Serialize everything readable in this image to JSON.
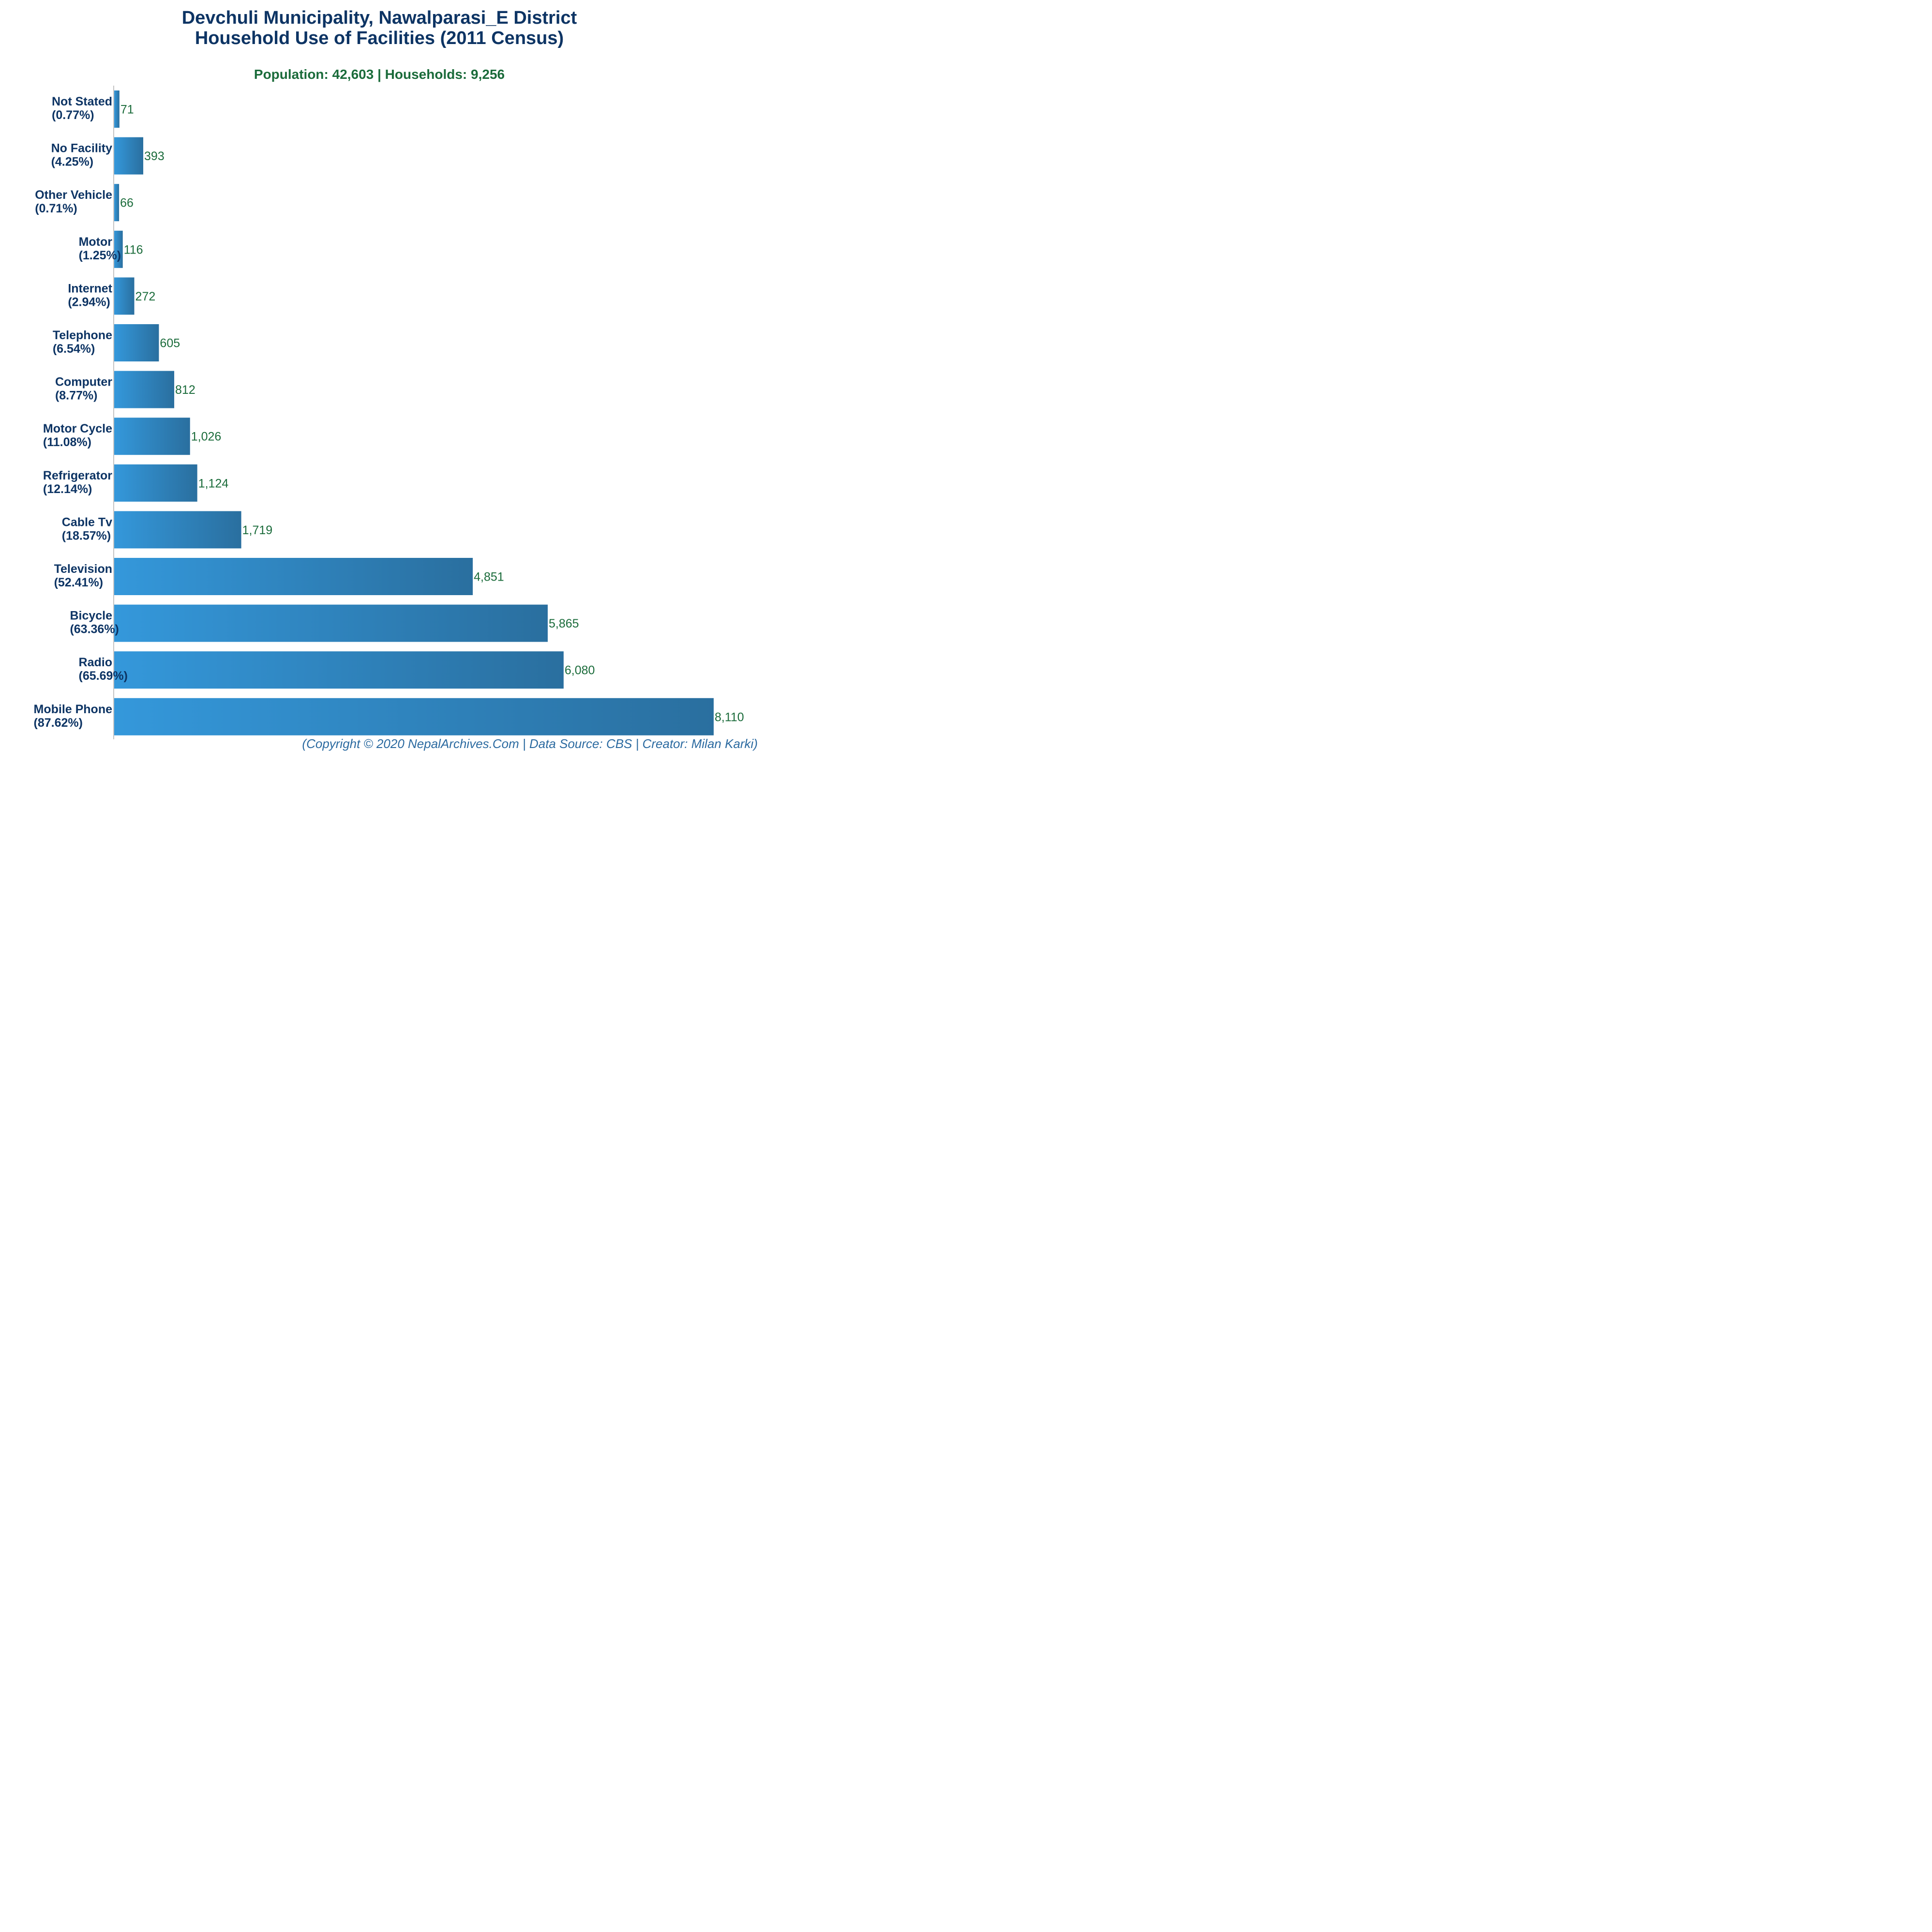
{
  "title_line1": "Devchuli Municipality, Nawalparasi_E District",
  "title_line2": "Household Use of Facilities (2011 Census)",
  "subtitle": "Population: 42,603 | Households: 9,256",
  "footer": "(Copyright © 2020 NepalArchives.Com | Data Source: CBS | Creator: Milan Karki)",
  "colors": {
    "bar_start": "#3498db",
    "bar_end": "#2a6f9f",
    "title": "#0d3464",
    "value": "#1a6b3a",
    "footer": "#2b6aa0"
  },
  "chart_data": {
    "type": "bar",
    "orientation": "horizontal",
    "categories": [
      "Not Stated",
      "No Facility",
      "Other Vehicle",
      "Motor",
      "Internet",
      "Telephone",
      "Computer",
      "Motor Cycle",
      "Refrigerator",
      "Cable Tv",
      "Television",
      "Bicycle",
      "Radio",
      "Mobile Phone"
    ],
    "percent_labels": [
      "(0.77%)",
      "(4.25%)",
      "(0.71%)",
      "(1.25%)",
      "(2.94%)",
      "(6.54%)",
      "(8.77%)",
      "(11.08%)",
      "(12.14%)",
      "(18.57%)",
      "(52.41%)",
      "(63.36%)",
      "(65.69%)",
      "(87.62%)"
    ],
    "values": [
      71,
      393,
      66,
      116,
      272,
      605,
      812,
      1026,
      1124,
      1719,
      4851,
      5865,
      6080,
      8110
    ],
    "value_labels": [
      "71",
      "393",
      "66",
      "116",
      "272",
      "605",
      "812",
      "1,026",
      "1,124",
      "1,719",
      "4,851",
      "5,865",
      "6,080",
      "8,110"
    ],
    "xlim": [
      0,
      8110
    ],
    "grid": false,
    "legend": "none"
  }
}
